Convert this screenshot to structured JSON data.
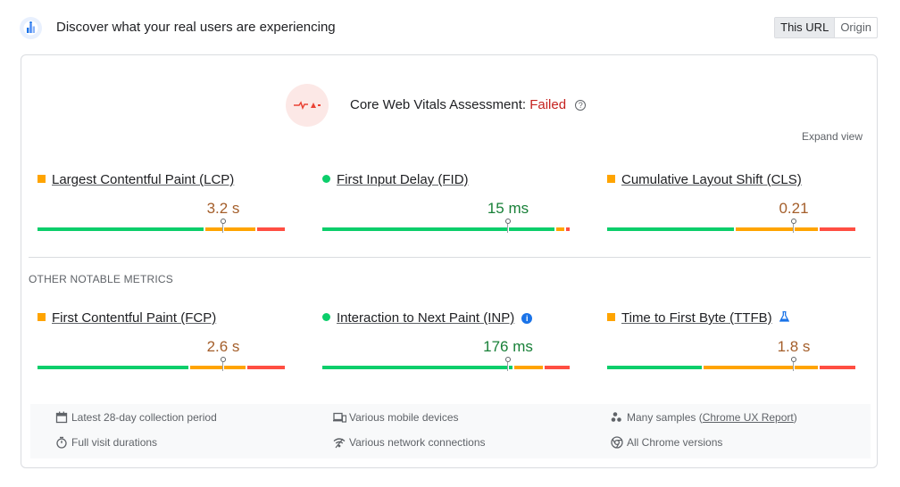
{
  "header": {
    "logo_icon": "crux-logo-icon",
    "title": "Discover what your real users are experiencing",
    "toggle": [
      "This URL",
      "Origin"
    ],
    "active_toggle": "This URL"
  },
  "assessment": {
    "icon": "failed-assessment-icon",
    "label": "Core Web Vitals Assessment:",
    "status": "Failed",
    "help_glyph": "?",
    "expand_label": "Expand view"
  },
  "core_metrics": [
    {
      "name": "Largest Contentful Paint (LCP)",
      "value": "3.2 s",
      "rating": "needs-improvement",
      "distribution": [
        0.67,
        0.21,
        0.12
      ],
      "position": 0.75
    },
    {
      "name": "First Input Delay (FID)",
      "value": "15 ms",
      "rating": "good",
      "distribution": [
        0.94,
        0.04,
        0.02
      ],
      "position": 0.75
    },
    {
      "name": "Cumulative Layout Shift (CLS)",
      "value": "0.21",
      "rating": "needs-improvement",
      "distribution": [
        0.51,
        0.34,
        0.15
      ],
      "position": 0.75
    }
  ],
  "other_label": "OTHER NOTABLE METRICS",
  "other_metrics": [
    {
      "name": "First Contentful Paint (FCP)",
      "value": "2.6 s",
      "rating": "needs-improvement",
      "distribution": [
        0.61,
        0.23,
        0.16
      ],
      "position": 0.75,
      "badge": ""
    },
    {
      "name": "Interaction to Next Paint (INP)",
      "value": "176 ms",
      "rating": "good",
      "distribution": [
        0.77,
        0.12,
        0.11
      ],
      "position": 0.75,
      "badge": "info-icon"
    },
    {
      "name": "Time to First Byte (TTFB)",
      "value": "1.8 s",
      "rating": "needs-improvement",
      "distribution": [
        0.38,
        0.47,
        0.15
      ],
      "position": 0.75,
      "badge": "lab-flask-icon"
    }
  ],
  "footer": {
    "collection_period": "Latest 28-day collection period",
    "devices": "Various mobile devices",
    "samples_prefix": "Many samples (",
    "samples_link": "Chrome UX Report",
    "samples_suffix": ")",
    "durations": "Full visit durations",
    "network": "Various network connections",
    "chrome": "All Chrome versions"
  },
  "colors": {
    "good": "#0cce6b",
    "needs_improvement": "#ffa400",
    "poor": "#ff4e42",
    "failed_text": "#c5221f"
  }
}
